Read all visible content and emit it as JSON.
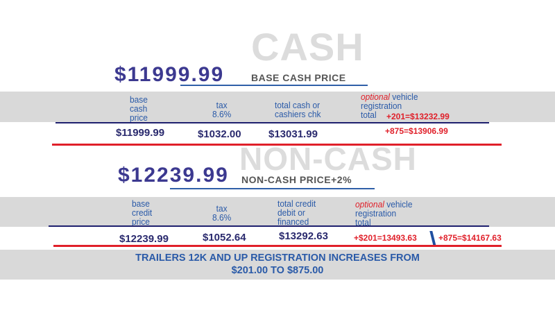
{
  "cash": {
    "watermark": "CASH",
    "price": "$11999.99",
    "price_label": "BASE CASH PRICE",
    "headers": {
      "base": [
        "base",
        "cash",
        "price"
      ],
      "tax": [
        "tax",
        "8.6%"
      ],
      "total": [
        "total cash or",
        "cashiers chk"
      ],
      "optional": "optional",
      "vehicle": "vehicle",
      "registration": "registration",
      "total_word": "total"
    },
    "values": {
      "base": "$11999.99",
      "tax": "$1032.00",
      "total": "$13031.99",
      "reg_201": "+201=$13232.99",
      "reg_875": "+875=$13906.99"
    }
  },
  "noncash": {
    "watermark": "NON-CASH",
    "price": "$12239.99",
    "price_label": "NON-CASH PRICE+2%",
    "headers": {
      "base": [
        "base",
        "credit",
        "price"
      ],
      "tax": [
        "tax",
        "8.6%"
      ],
      "total": [
        "total credit",
        "debit or",
        "financed"
      ],
      "optional": "optional",
      "vehicle": "vehicle",
      "registration": "registration",
      "total_word": "total"
    },
    "values": {
      "base": "$12239.99",
      "tax": "$1052.64",
      "total": "$13292.63",
      "reg_201": "+$201=13493.63",
      "reg_875": "+875=$14167.63"
    }
  },
  "footer": {
    "line1": "TRAILERS 12K AND UP REGISTRATION INCREASES FROM",
    "line2": "$201.00 TO $875.00"
  },
  "colors": {
    "price": "#3c3990",
    "header_text": "#2a5aa8",
    "accent_red": "#e0202a",
    "navy_rule": "#1e1f6e",
    "band_gray": "#d9d9d9",
    "watermark": "#dcdcdc"
  }
}
